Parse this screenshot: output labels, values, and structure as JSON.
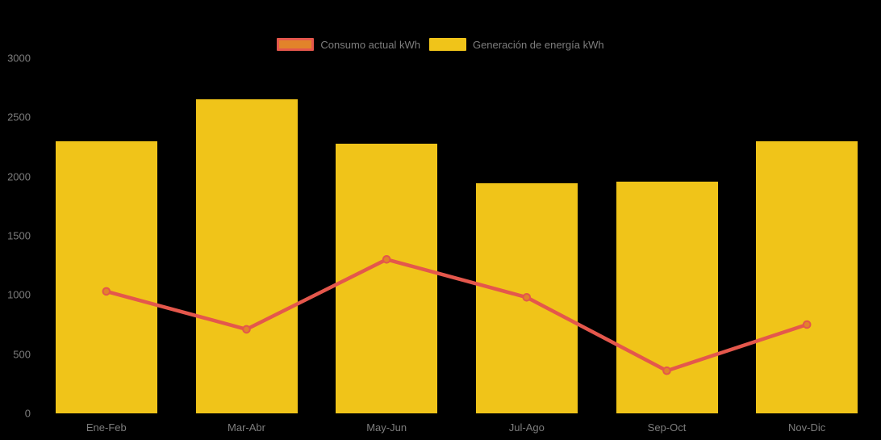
{
  "chart_data": {
    "type": "combo",
    "subtypes": [
      "line",
      "bar"
    ],
    "categories": [
      "Ene-Feb",
      "Mar-Abr",
      "May-Jun",
      "Jul-Ago",
      "Sep-Oct",
      "Nov-Dic"
    ],
    "series": [
      {
        "name": "Consumo actual kWh",
        "type": "line",
        "values": [
          1030,
          710,
          1300,
          980,
          360,
          750
        ],
        "line_color": "#e4574c",
        "marker_fill": "#e2832a"
      },
      {
        "name": "Generación de energía kWh",
        "type": "bar",
        "values": [
          2300,
          2650,
          2280,
          1940,
          1960,
          2300
        ],
        "bar_color": "#f0c419"
      }
    ],
    "title": "",
    "xlabel": "",
    "ylabel": "",
    "ylim": [
      0,
      3000
    ],
    "yticks": [
      0,
      500,
      1000,
      1500,
      2000,
      2500,
      3000
    ],
    "legend_position": "top-center",
    "grid": false,
    "background_color": "#000000",
    "text_color": "#7d7d7d"
  }
}
